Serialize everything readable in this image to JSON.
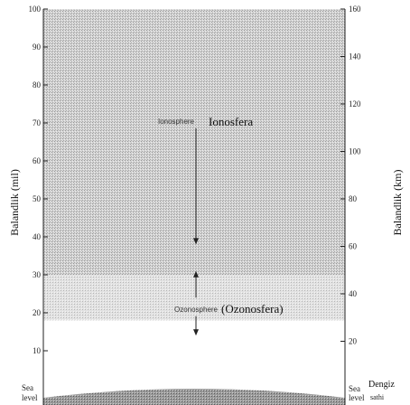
{
  "left_axis": {
    "title": "Balandlik (mil)",
    "unit": "mi",
    "ticks": [
      {
        "value": 100,
        "label": "100"
      },
      {
        "value": 90,
        "label": "90"
      },
      {
        "value": 80,
        "label": "80"
      },
      {
        "value": 70,
        "label": "70"
      },
      {
        "value": 60,
        "label": "60"
      },
      {
        "value": 50,
        "label": "50"
      },
      {
        "value": 40,
        "label": "40"
      },
      {
        "value": 30,
        "label": "30"
      },
      {
        "value": 20,
        "label": "20"
      },
      {
        "value": 10,
        "label": "10"
      }
    ],
    "range": [
      0,
      100
    ],
    "bottom_label_line1": "Sea",
    "bottom_label_line2": "level"
  },
  "right_axis": {
    "title": "Balandlik (km)",
    "unit": "km",
    "ticks": [
      {
        "value": 160,
        "label": "160"
      },
      {
        "value": 140,
        "label": "140"
      },
      {
        "value": 120,
        "label": "120"
      },
      {
        "value": 100,
        "label": "100"
      },
      {
        "value": 80,
        "label": "80"
      },
      {
        "value": 60,
        "label": "60"
      },
      {
        "value": 40,
        "label": "40"
      },
      {
        "value": 20,
        "label": "20"
      }
    ],
    "range": [
      0,
      160
    ],
    "bottom_label_line1": "Sea",
    "bottom_label_line2": "level",
    "bottom_label_uz_line1": "Dengiz",
    "bottom_label_uz_line2": "sathi"
  },
  "layers": {
    "ionosphere": {
      "label_en": "Ionosphere",
      "label_uz": "Ionosfera",
      "label_altitude_mi": 70,
      "arrow_to_mi": 38,
      "lower_bound_mi": 30,
      "fill_color": "#cfcfcf"
    },
    "ozonosphere": {
      "label_en": "Ozonosphere",
      "label_uz": "(Ozonosfera)",
      "label_altitude_mi": 21,
      "arrow_up_from_mi": 24,
      "arrow_up_to_mi": 31,
      "arrow_down_to_mi": 14,
      "lower_bound_mi": 18,
      "fill_color": "#dcdcdc"
    },
    "ground": {
      "fill_color": "#8a8a8a"
    }
  }
}
